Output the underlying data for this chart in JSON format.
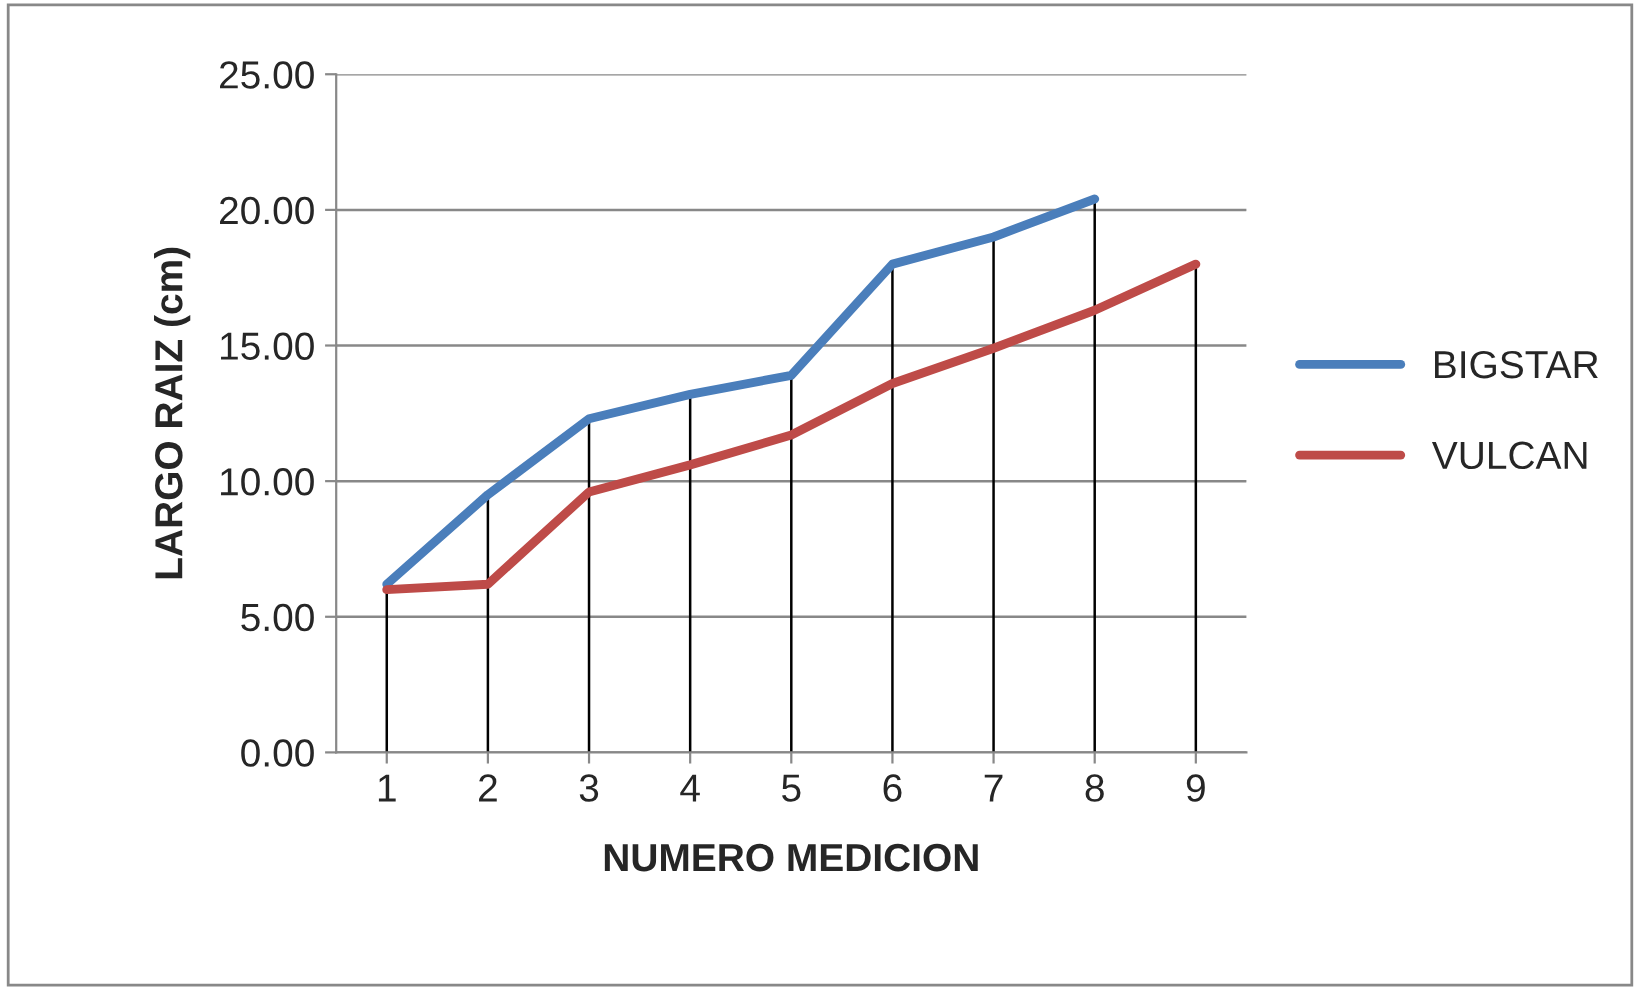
{
  "chart_data": {
    "type": "line",
    "xlabel": "NUMERO MEDICION",
    "ylabel": "LARGO RAIZ (cm)",
    "categories": [
      "1",
      "2",
      "3",
      "4",
      "5",
      "6",
      "7",
      "8",
      "9"
    ],
    "series": [
      {
        "name": "BIGSTAR",
        "color": "#4a7ebb",
        "values": [
          6.2,
          9.5,
          12.3,
          13.2,
          13.9,
          18.0,
          19.0,
          20.4,
          null
        ]
      },
      {
        "name": "VULCAN",
        "color": "#be4b48",
        "values": [
          6.0,
          6.2,
          9.6,
          10.6,
          11.7,
          13.6,
          14.9,
          16.3,
          18.0
        ]
      }
    ],
    "ylim": [
      0,
      25
    ],
    "yticks": [
      {
        "value": 0,
        "label": "0.00"
      },
      {
        "value": 5,
        "label": "5.00"
      },
      {
        "value": 10,
        "label": "10.00"
      },
      {
        "value": 15,
        "label": "15.00"
      },
      {
        "value": 20,
        "label": "20.00"
      },
      {
        "value": 25,
        "label": "25.00"
      }
    ],
    "ref_lines": [
      {
        "axis": "x",
        "value": "1",
        "color": "#000000"
      },
      {
        "axis": "x",
        "value": "2",
        "color": "#000000"
      },
      {
        "axis": "x",
        "value": "3",
        "color": "#000000"
      },
      {
        "axis": "x",
        "value": "4",
        "color": "#000000"
      },
      {
        "axis": "x",
        "value": "5",
        "color": "#000000"
      },
      {
        "axis": "x",
        "value": "6",
        "color": "#000000"
      },
      {
        "axis": "x",
        "value": "7",
        "color": "#000000"
      },
      {
        "axis": "x",
        "value": "8",
        "color": "#000000"
      },
      {
        "axis": "x",
        "value": "9",
        "color": "#000000"
      }
    ],
    "grid": "y",
    "legend": "right",
    "marker": "none",
    "line_style": "solid"
  }
}
